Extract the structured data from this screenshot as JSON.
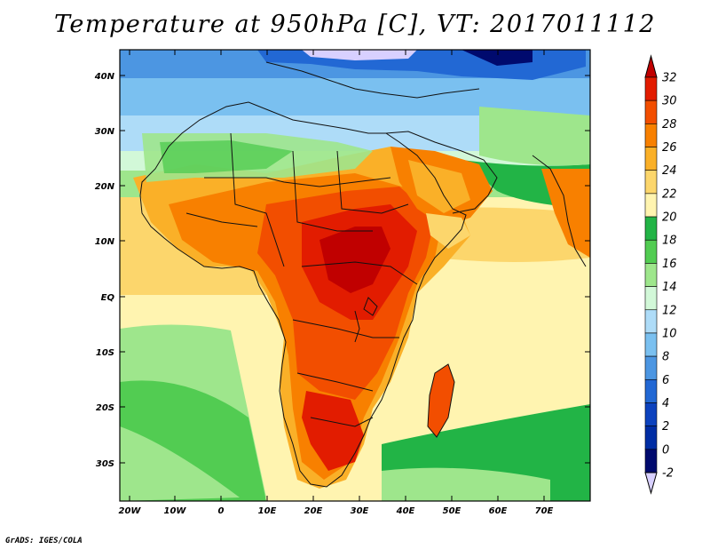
{
  "title": "Temperature at 950hPa [C], VT: 2017011112",
  "credit": "GrADS: IGES/COLA",
  "lat_labels": [
    "40N",
    "30N",
    "20N",
    "10N",
    "EQ",
    "10S",
    "20S",
    "30S"
  ],
  "lon_labels": [
    "20W",
    "10W",
    "0",
    "10E",
    "20E",
    "30E",
    "40E",
    "50E",
    "60E",
    "70E"
  ],
  "colorbar": {
    "labels": [
      "32",
      "30",
      "28",
      "26",
      "24",
      "22",
      "20",
      "18",
      "16",
      "14",
      "12",
      "10",
      "8",
      "6",
      "4",
      "2",
      "0",
      "-2"
    ],
    "colors": [
      "#c00000",
      "#e21c00",
      "#f24e00",
      "#f88000",
      "#fab028",
      "#fcd66c",
      "#fff4b0",
      "#22b446",
      "#52cc52",
      "#9ee68c",
      "#d2f8d8",
      "#aedcf8",
      "#7ac0f0",
      "#4c96e2",
      "#2268d4",
      "#0c42be",
      "#002da4",
      "#000a6e",
      "#d8d0ff"
    ]
  },
  "map_colors": {
    "frame": "#000000",
    "border": "#111111"
  }
}
